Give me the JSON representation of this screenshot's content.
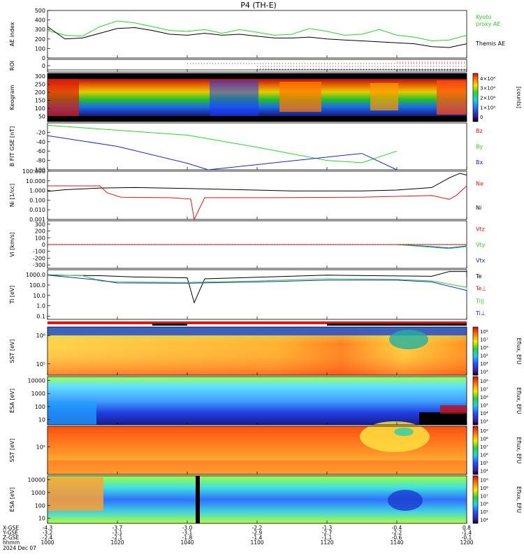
{
  "title": "P4 (TH-E)",
  "colors": {
    "red": "#e8150e",
    "green": "#2ad62a",
    "blue": "#1626d6",
    "black": "#000000"
  },
  "time": {
    "start": 1000,
    "end": 1200,
    "ticks": [
      1000,
      1020,
      1040,
      1100,
      1120,
      1140,
      1200
    ],
    "tick_labels": [
      "1000",
      "1020",
      "1040",
      "1100",
      "1120",
      "1140",
      "1200"
    ]
  },
  "footer": {
    "row_labels": [
      "X-GSE",
      "Y-GSE",
      "Z-GSE",
      "hhmm",
      "2024 Dec 07"
    ],
    "x_gse": [
      "-4.3",
      "-3.7",
      "-3.0",
      "-2.2",
      "-1.3",
      "-0.4",
      "0.8"
    ],
    "y_gse": [
      "-3.2",
      "-3.1",
      "-3.1",
      "-2.9",
      "-2.7",
      "-2.2",
      "-1.4"
    ],
    "z_gse": [
      "-2.4",
      "-2.1",
      "-1.8",
      "-1.4",
      "-1.1",
      "-0.6",
      "-0.1"
    ]
  },
  "chart_data": [
    {
      "type": "line",
      "id": "ae",
      "ylabel": "AE index",
      "ylim": [
        0,
        500
      ],
      "yticks": [
        "500",
        "400",
        "300",
        "200",
        "100",
        "0"
      ],
      "labels": [
        {
          "text": "Kyoto",
          "color": "green"
        },
        {
          "text": "proxy AE",
          "color": "green"
        },
        {
          "text": "Themis AE",
          "color": "black"
        }
      ],
      "series": [
        {
          "name": "Kyoto proxy AE",
          "color": "green",
          "x": [
            1000,
            1005,
            1010,
            1015,
            1020,
            1025,
            1030,
            1035,
            1040,
            1045,
            1050,
            1055,
            1100,
            1105,
            1110,
            1115,
            1120,
            1125,
            1130,
            1135,
            1140,
            1145,
            1150,
            1155,
            1200
          ],
          "y": [
            290,
            240,
            230,
            330,
            390,
            370,
            330,
            290,
            280,
            300,
            260,
            300,
            270,
            240,
            250,
            310,
            280,
            240,
            250,
            300,
            240,
            220,
            180,
            190,
            240
          ]
        },
        {
          "name": "Themis AE",
          "color": "black",
          "x": [
            1000,
            1005,
            1010,
            1015,
            1020,
            1025,
            1030,
            1035,
            1040,
            1045,
            1050,
            1055,
            1100,
            1105,
            1110,
            1115,
            1120,
            1125,
            1130,
            1135,
            1140,
            1145,
            1150,
            1155,
            1200
          ],
          "y": [
            330,
            200,
            210,
            260,
            310,
            320,
            290,
            250,
            240,
            260,
            240,
            250,
            230,
            210,
            210,
            220,
            200,
            190,
            180,
            170,
            160,
            150,
            120,
            110,
            150
          ]
        }
      ]
    },
    {
      "type": "scatter",
      "id": "roi",
      "ylabel": "ROI",
      "yticks": [
        "0"
      ]
    },
    {
      "type": "heatmap",
      "id": "keogram",
      "ylabel": "Keogram",
      "ytick_values": [
        300,
        250,
        200,
        150,
        100,
        50
      ],
      "yticks": [
        "300",
        "250",
        "200",
        "150",
        "100",
        "50"
      ],
      "colorbar": {
        "label": "[counts]",
        "ticks": [
          "4×10⁴",
          "3×10⁴",
          "2×10⁴",
          "1×10⁴",
          "0"
        ]
      }
    },
    {
      "type": "line",
      "id": "bfit",
      "ylabel": "B FIT GSE [nT]",
      "ylim": [
        -100,
        0
      ],
      "yticks": [
        "-20",
        "-40",
        "-60",
        "-80",
        "-100"
      ],
      "labels": [
        {
          "text": "Bz",
          "color": "red"
        },
        {
          "text": "By",
          "color": "green"
        },
        {
          "text": "Bx",
          "color": "blue"
        }
      ],
      "series": [
        {
          "name": "By",
          "color": "green",
          "x": [
            1000,
            1040,
            1100,
            1120,
            1130,
            1140
          ],
          "y": [
            -5,
            -26,
            -52,
            -80,
            -85,
            -60
          ]
        },
        {
          "name": "Bx",
          "color": "blue",
          "x": [
            1000,
            1020,
            1040,
            1046,
            1130,
            1140
          ],
          "y": [
            -27,
            -50,
            -86,
            -100,
            -65,
            -100
          ]
        }
      ]
    },
    {
      "type": "line",
      "id": "ni",
      "ylabel": "Ni [1/cc]",
      "yscale": "log",
      "ylim": [
        0.001,
        100
      ],
      "yticks": [
        "100.000",
        "10.000",
        "1.000",
        "0.100",
        "0.010",
        "0.001"
      ],
      "labels": [
        {
          "text": "Ne",
          "color": "red"
        },
        {
          "text": "Ni",
          "color": "black"
        }
      ],
      "series": [
        {
          "name": "Ni",
          "color": "black",
          "x": [
            1000,
            1005,
            1015,
            1025,
            1040,
            1055,
            1110,
            1130,
            1140,
            1150,
            1155,
            1158,
            1200
          ],
          "y": [
            0.8,
            1.2,
            1.8,
            2.0,
            1.6,
            1.2,
            0.9,
            0.9,
            1.1,
            2.0,
            20,
            60,
            40
          ]
        },
        {
          "name": "Ne",
          "color": "red",
          "x": [
            1000,
            1015,
            1017,
            1021,
            1035,
            1041,
            1042,
            1045,
            1100,
            1130,
            1150,
            1155,
            1157,
            1200
          ],
          "y": [
            3,
            3,
            0.6,
            0.2,
            0.18,
            0.13,
            0.001,
            0.18,
            0.18,
            0.2,
            0.3,
            0.12,
            0.3,
            3
          ]
        }
      ]
    },
    {
      "type": "line",
      "id": "vi",
      "ylabel": "Vi [km/s]",
      "ylim": [
        -350,
        350
      ],
      "yticks": [
        "300",
        "200",
        "100",
        "0",
        "-100",
        "-200",
        "-300"
      ],
      "labels": [
        {
          "text": "Vtz",
          "color": "red"
        },
        {
          "text": "Vty",
          "color": "green"
        },
        {
          "text": "Vtx",
          "color": "blue"
        }
      ],
      "series": [
        {
          "name": "Vtx",
          "color": "blue",
          "x": [
            1000,
            1140,
            1150,
            1155,
            1160,
            1200
          ],
          "y": [
            0,
            0,
            -30,
            -50,
            -20,
            -40
          ]
        },
        {
          "name": "Vty",
          "color": "green",
          "x": [
            1000,
            1140,
            1150,
            1155,
            1160,
            1200
          ],
          "y": [
            0,
            0,
            -40,
            -60,
            -30,
            -20
          ]
        },
        {
          "name": "Vtz",
          "color": "red",
          "x": [
            1000,
            1200
          ],
          "y": [
            0,
            0
          ]
        }
      ]
    },
    {
      "type": "line",
      "id": "ti",
      "ylabel": "Ti [eV]",
      "yscale": "log",
      "ylim": [
        0.05,
        3000
      ],
      "yticks": [
        "1000.0",
        "100.0",
        "10.0",
        "1.0",
        "0.1"
      ],
      "labels": [
        {
          "text": "Te",
          "color": "black"
        },
        {
          "text": "Te⊥",
          "color": "red"
        },
        {
          "text": "Ti||",
          "color": "green"
        },
        {
          "text": "Ti⊥",
          "color": "blue"
        }
      ],
      "series": [
        {
          "name": "Te",
          "color": "black",
          "x": [
            1000,
            1015,
            1025,
            1040,
            1042,
            1045,
            1120,
            1150,
            1155,
            1160,
            1200
          ],
          "y": [
            900,
            800,
            600,
            500,
            2,
            400,
            900,
            700,
            2000,
            2000,
            600
          ]
        },
        {
          "name": "Ti||",
          "color": "green",
          "x": [
            1000,
            1010,
            1015,
            1020,
            1040,
            1100,
            1120,
            1140,
            1150,
            1160,
            1200
          ],
          "y": [
            1000,
            800,
            250,
            200,
            180,
            250,
            400,
            350,
            250,
            60,
            15
          ]
        },
        {
          "name": "Ti⊥",
          "color": "blue",
          "x": [
            1000,
            1015,
            1020,
            1040,
            1100,
            1120,
            1140,
            1150,
            1160,
            1200
          ],
          "y": [
            900,
            300,
            160,
            150,
            200,
            300,
            300,
            200,
            30,
            3
          ]
        }
      ]
    },
    {
      "type": "heatmap",
      "id": "sst_i",
      "ylabel": "SST [eV]",
      "ytick_values": [
        1000000,
        100000
      ],
      "yticks": [
        "10⁶",
        "10⁵"
      ],
      "colorbar": {
        "label": "Eflux, EFU",
        "ticks": [
          "10⁸",
          "10⁷",
          "10⁶",
          "10⁵",
          "10⁴",
          "10³"
        ]
      }
    },
    {
      "type": "heatmap",
      "id": "esa_i",
      "ylabel": "ESA [eV]",
      "ytick_values": [
        10000,
        1000,
        100,
        10
      ],
      "yticks": [
        "10000",
        "1000",
        "100",
        "10"
      ],
      "colorbar": {
        "label": "Eflux, EFU",
        "ticks": [
          "10⁸",
          "10⁷",
          "10⁶",
          "10⁵",
          "10⁴",
          "10³"
        ]
      }
    },
    {
      "type": "heatmap",
      "id": "sst_e",
      "ylabel": "SST [eV]",
      "ytick_values": [
        100000
      ],
      "yticks": [
        "10⁵"
      ],
      "colorbar": {
        "label": "Eflux, EFU",
        "ticks": [
          "10⁹",
          "10⁸",
          "10⁷",
          "10⁶",
          "10⁵",
          "10⁴"
        ]
      }
    },
    {
      "type": "heatmap",
      "id": "esa_e",
      "ylabel": "ESA [eV]",
      "ytick_values": [
        10000,
        1000,
        100,
        10
      ],
      "yticks": [
        "10000",
        "1000",
        "100",
        "10"
      ],
      "colorbar": {
        "label": "Eflux, EFU",
        "ticks": [
          "10⁹",
          "10⁸",
          "10⁷",
          "10⁶",
          "10⁵",
          "10⁴"
        ]
      }
    }
  ]
}
